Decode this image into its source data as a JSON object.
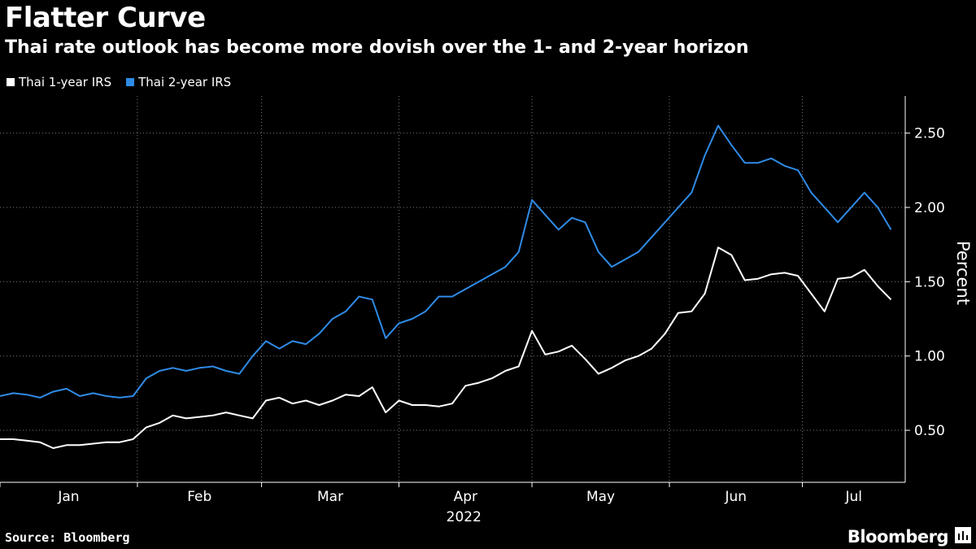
{
  "header": {
    "title": "Flatter Curve",
    "subtitle": "Thai rate outlook has become more dovish over the 1- and 2-year horizon"
  },
  "legend": [
    {
      "label": "Thai 1-year IRS",
      "color": "#ffffff"
    },
    {
      "label": "Thai 2-year IRS",
      "color": "#2f8be6"
    }
  ],
  "footer": {
    "source": "Source: Bloomberg",
    "brand": "Bloomberg"
  },
  "chart_data": {
    "type": "line",
    "title": "Flatter Curve",
    "subtitle": "Thai rate outlook has become more dovish over the 1- and 2-year horizon",
    "ylabel": "Percent",
    "xlabel": "2022",
    "ylim": [
      0.15,
      2.75
    ],
    "xlim": [
      "2022-01-01",
      "2022-07-22"
    ],
    "y_ticks": [
      0.5,
      1.0,
      1.5,
      2.0,
      2.5
    ],
    "y_tick_labels": [
      "0.50",
      "1.00",
      "1.50",
      "2.00",
      "2.50"
    ],
    "x_months": [
      "Jan",
      "Feb",
      "Mar",
      "Apr",
      "May",
      "Jun",
      "Jul"
    ],
    "x_year": "2022",
    "grid": true,
    "legend_position": "top-left",
    "series": [
      {
        "name": "Thai 1-year IRS",
        "color": "#ffffff",
        "x": [
          "2022-01-01",
          "2022-01-04",
          "2022-01-07",
          "2022-01-10",
          "2022-01-13",
          "2022-01-16",
          "2022-01-19",
          "2022-01-22",
          "2022-01-25",
          "2022-01-28",
          "2022-01-31",
          "2022-02-03",
          "2022-02-06",
          "2022-02-09",
          "2022-02-12",
          "2022-02-15",
          "2022-02-18",
          "2022-02-21",
          "2022-02-24",
          "2022-02-27",
          "2022-03-02",
          "2022-03-05",
          "2022-03-08",
          "2022-03-11",
          "2022-03-14",
          "2022-03-17",
          "2022-03-20",
          "2022-03-23",
          "2022-03-26",
          "2022-03-29",
          "2022-04-01",
          "2022-04-04",
          "2022-04-07",
          "2022-04-10",
          "2022-04-13",
          "2022-04-16",
          "2022-04-19",
          "2022-04-22",
          "2022-04-25",
          "2022-04-28",
          "2022-05-01",
          "2022-05-04",
          "2022-05-07",
          "2022-05-10",
          "2022-05-13",
          "2022-05-16",
          "2022-05-19",
          "2022-05-22",
          "2022-05-25",
          "2022-05-28",
          "2022-05-31",
          "2022-06-03",
          "2022-06-06",
          "2022-06-09",
          "2022-06-12",
          "2022-06-15",
          "2022-06-18",
          "2022-06-21",
          "2022-06-24",
          "2022-06-27",
          "2022-06-30",
          "2022-07-03",
          "2022-07-06",
          "2022-07-09",
          "2022-07-12",
          "2022-07-15",
          "2022-07-18",
          "2022-07-21"
        ],
        "values": [
          0.44,
          0.44,
          0.43,
          0.42,
          0.38,
          0.4,
          0.4,
          0.41,
          0.42,
          0.42,
          0.44,
          0.52,
          0.55,
          0.6,
          0.58,
          0.59,
          0.6,
          0.62,
          0.6,
          0.58,
          0.7,
          0.72,
          0.68,
          0.7,
          0.67,
          0.7,
          0.74,
          0.73,
          0.79,
          0.62,
          0.7,
          0.67,
          0.67,
          0.66,
          0.68,
          0.8,
          0.82,
          0.85,
          0.9,
          0.93,
          1.17,
          1.01,
          1.03,
          1.07,
          0.98,
          0.88,
          0.92,
          0.97,
          1.0,
          1.05,
          1.15,
          1.29,
          1.3,
          1.42,
          1.73,
          1.68,
          1.51,
          1.52,
          1.55,
          1.56,
          1.54,
          1.42,
          1.3,
          1.52,
          1.53,
          1.58,
          1.47,
          1.38
        ]
      },
      {
        "name": "Thai 2-year IRS",
        "color": "#2f8be6",
        "x": [
          "2022-01-01",
          "2022-01-04",
          "2022-01-07",
          "2022-01-10",
          "2022-01-13",
          "2022-01-16",
          "2022-01-19",
          "2022-01-22",
          "2022-01-25",
          "2022-01-28",
          "2022-01-31",
          "2022-02-03",
          "2022-02-06",
          "2022-02-09",
          "2022-02-12",
          "2022-02-15",
          "2022-02-18",
          "2022-02-21",
          "2022-02-24",
          "2022-02-27",
          "2022-03-02",
          "2022-03-05",
          "2022-03-08",
          "2022-03-11",
          "2022-03-14",
          "2022-03-17",
          "2022-03-20",
          "2022-03-23",
          "2022-03-26",
          "2022-03-29",
          "2022-04-01",
          "2022-04-04",
          "2022-04-07",
          "2022-04-10",
          "2022-04-13",
          "2022-04-16",
          "2022-04-19",
          "2022-04-22",
          "2022-04-25",
          "2022-04-28",
          "2022-05-01",
          "2022-05-04",
          "2022-05-07",
          "2022-05-10",
          "2022-05-13",
          "2022-05-16",
          "2022-05-19",
          "2022-05-22",
          "2022-05-25",
          "2022-05-28",
          "2022-05-31",
          "2022-06-03",
          "2022-06-06",
          "2022-06-09",
          "2022-06-12",
          "2022-06-15",
          "2022-06-18",
          "2022-06-21",
          "2022-06-24",
          "2022-06-27",
          "2022-06-30",
          "2022-07-03",
          "2022-07-06",
          "2022-07-09",
          "2022-07-12",
          "2022-07-15",
          "2022-07-18",
          "2022-07-21"
        ],
        "values": [
          0.73,
          0.75,
          0.74,
          0.72,
          0.76,
          0.78,
          0.73,
          0.75,
          0.73,
          0.72,
          0.73,
          0.85,
          0.9,
          0.92,
          0.9,
          0.92,
          0.93,
          0.9,
          0.88,
          1.0,
          1.1,
          1.05,
          1.1,
          1.08,
          1.15,
          1.25,
          1.3,
          1.4,
          1.38,
          1.12,
          1.22,
          1.25,
          1.3,
          1.4,
          1.4,
          1.45,
          1.5,
          1.55,
          1.6,
          1.7,
          2.05,
          1.95,
          1.85,
          1.93,
          1.9,
          1.7,
          1.6,
          1.65,
          1.7,
          1.8,
          1.9,
          2.0,
          2.1,
          2.35,
          2.55,
          2.42,
          2.3,
          2.3,
          2.33,
          2.28,
          2.25,
          2.1,
          2.0,
          1.9,
          2.0,
          2.1,
          2.0,
          1.85
        ]
      }
    ]
  }
}
